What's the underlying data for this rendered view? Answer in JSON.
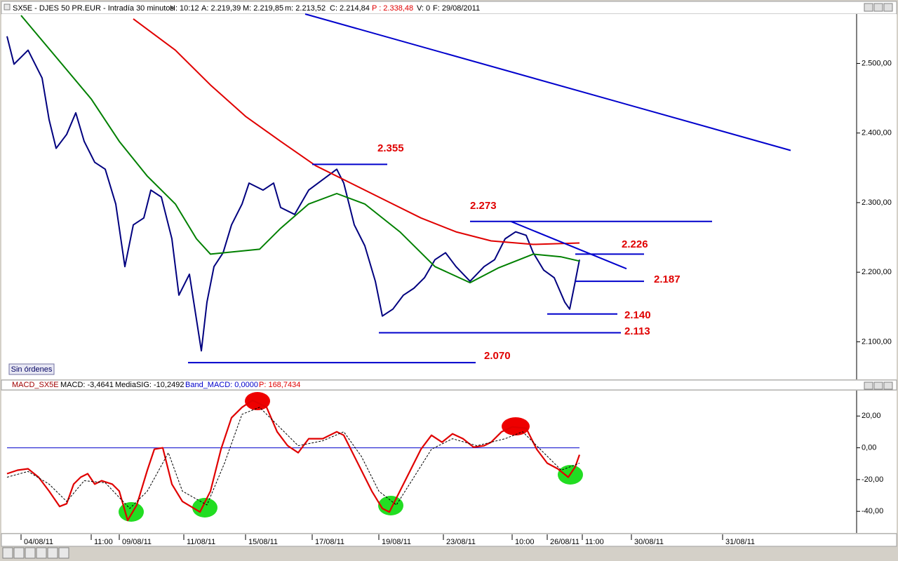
{
  "window": {
    "header": [
      "SX5E - DJES 50 PR.EUR - Intradía 30 minutos",
      "H: 10:12",
      "A: 2.219,39",
      "M: 2.219,85",
      "m: 2.213,52",
      "C: 2.214,84",
      "P : 2.338,48",
      "V: 0",
      "F: 29/08/2011"
    ],
    "button": "Sin órdenes",
    "macd_header": [
      "MACD_SX5E",
      "MACD: -3,4641",
      "MediaSIG: -10,2492",
      "Band_MACD: 0,0000",
      "P: 168,7434"
    ]
  },
  "chart_data": [
    {
      "type": "line",
      "xlim": [
        0,
        244
      ],
      "ylim": [
        2047,
        2571
      ],
      "yticks": [
        {
          "value": 2100,
          "label": "2.100,00"
        },
        {
          "value": 2200,
          "label": "2.200,00"
        },
        {
          "value": 2300,
          "label": "2.300,00"
        },
        {
          "value": 2400,
          "label": "2.400,00"
        },
        {
          "value": 2500,
          "label": "2.500,00"
        }
      ],
      "series": [
        {
          "color": "#00007f",
          "x": [
            2,
            4,
            8,
            12,
            14,
            16,
            19,
            21.6,
            24,
            27,
            30,
            33,
            35.6,
            38,
            41,
            43,
            46,
            49,
            51,
            54,
            57.4,
            59,
            61,
            63.6,
            66,
            69,
            71,
            75,
            78,
            80,
            84,
            88,
            92,
            96,
            98,
            101,
            104,
            107,
            109,
            112,
            115,
            118,
            121,
            124,
            127,
            130,
            134,
            138,
            141,
            144,
            147,
            150,
            152,
            155,
            158,
            161,
            162.4,
            164,
            165.2
          ],
          "values": [
            2539,
            2499,
            2519,
            2479,
            2419,
            2378,
            2398,
            2429,
            2388,
            2358,
            2348,
            2298,
            2208,
            2268,
            2278,
            2318,
            2308,
            2248,
            2167,
            2197,
            2087,
            2157,
            2208,
            2228,
            2268,
            2298,
            2328,
            2318,
            2328,
            2293,
            2283,
            2318,
            2333,
            2348,
            2328,
            2268,
            2238,
            2187,
            2137,
            2147,
            2167,
            2177,
            2192,
            2218,
            2228,
            2208,
            2187,
            2208,
            2218,
            2248,
            2258,
            2253,
            2228,
            2203,
            2192,
            2157,
            2147,
            2187,
            2218
          ]
        },
        {
          "color": "#e00000",
          "x": [
            38,
            50,
            60,
            70,
            80,
            90,
            100,
            110,
            120,
            130,
            140,
            152,
            165.2
          ],
          "values": [
            2564,
            2519,
            2469,
            2424,
            2388,
            2353,
            2328,
            2303,
            2278,
            2258,
            2245,
            2240,
            2242
          ]
        },
        {
          "color": "#008000",
          "x": [
            6,
            16,
            26,
            34,
            42,
            50,
            56,
            60,
            74,
            80,
            88,
            96,
            104,
            114,
            124,
            134,
            142,
            152,
            160,
            165.2
          ],
          "values": [
            2569,
            2509,
            2449,
            2388,
            2338,
            2298,
            2248,
            2226,
            2233,
            2263,
            2298,
            2313,
            2298,
            2258,
            2208,
            2185,
            2206,
            2226,
            2222,
            2216
          ]
        }
      ],
      "levels": {
        "values": [
          2355,
          2273,
          2226,
          2187,
          2140,
          2113,
          2070
        ],
        "value_labels": [
          "2.355",
          "2.273",
          "2.226",
          "2.187",
          "2.140",
          "2.113",
          "2.070"
        ],
        "x_start": [
          89,
          134,
          164,
          164,
          156,
          108,
          53.6
        ],
        "x_end": [
          110.4,
          203,
          183.6,
          183.6,
          176,
          177,
          135.6
        ],
        "color": "#0000cc",
        "label_color": "#e00000"
      },
      "trendlines": [
        {
          "x": [
            87,
            225.4
          ],
          "y": [
            2571,
            2375
          ]
        },
        {
          "x": [
            145.6,
            178.6
          ],
          "y": [
            2273,
            2205
          ]
        }
      ]
    },
    {
      "type": "line",
      "xlim": [
        0,
        244
      ],
      "ylim": [
        -53.6,
        36
      ],
      "yticks": [
        {
          "value": -40,
          "label": "-40,00"
        },
        {
          "value": -20,
          "label": "-20,00"
        },
        {
          "value": 0,
          "label": "0,00"
        },
        {
          "value": 20,
          "label": "20,00"
        }
      ],
      "hlines": [
        0
      ],
      "hline_color": "#0000cc",
      "series": [
        {
          "color": "#e00000",
          "x": [
            2,
            5,
            8,
            11,
            14,
            17,
            19,
            21,
            23,
            25,
            27,
            29,
            32,
            34,
            36.4,
            39,
            42,
            44,
            46.4,
            49,
            52,
            57,
            60,
            63,
            66,
            69,
            72,
            76,
            79,
            82,
            85,
            88,
            92,
            96,
            98,
            100,
            103,
            106,
            109,
            111,
            114,
            117,
            120,
            123,
            126,
            129,
            132,
            135,
            138,
            140,
            143,
            146,
            150,
            153,
            156,
            159,
            162,
            164,
            165.2
          ],
          "values": [
            -16.3,
            -14.1,
            -13.2,
            -18.5,
            -27.3,
            -36.9,
            -35.2,
            -22.9,
            -18.5,
            -16.3,
            -22.9,
            -20.7,
            -22.9,
            -27.3,
            -45.7,
            -36,
            -14.1,
            -0.9,
            0,
            -22.9,
            -33.8,
            -40.4,
            -27.3,
            -0.9,
            18.9,
            25.5,
            29.9,
            25.5,
            10.1,
            1.3,
            -3.1,
            5.7,
            5.7,
            10.1,
            7.9,
            -0.9,
            -14.1,
            -27.3,
            -38.2,
            -40.4,
            -27.3,
            -14.1,
            -0.9,
            7.9,
            3.5,
            8.8,
            5.7,
            0.4,
            1.3,
            3.5,
            10.1,
            13.2,
            12.3,
            -0.9,
            -9.7,
            -13.2,
            -18.5,
            -11.9,
            -4.4
          ]
        },
        {
          "color": "#000000",
          "dashed": true,
          "x": [
            2,
            8,
            14,
            19,
            24,
            30,
            37,
            42,
            48,
            52,
            59,
            64,
            69,
            74,
            79,
            85,
            92,
            98,
            103,
            108,
            113,
            118,
            123,
            129,
            136,
            144,
            149,
            154,
            160,
            165.2
          ],
          "values": [
            -18.5,
            -14.9,
            -22.9,
            -33.8,
            -20.7,
            -22,
            -38.2,
            -27.3,
            -3.1,
            -27.3,
            -36,
            -9.7,
            21.1,
            25.5,
            14.5,
            1.3,
            4.4,
            10.1,
            -5.3,
            -27.3,
            -36,
            -18.5,
            -0.9,
            5.7,
            1.3,
            5.7,
            10.1,
            -0.9,
            -14.1,
            -9.7
          ]
        }
      ],
      "xticks": [
        {
          "value": 6,
          "label": "04/08/11"
        },
        {
          "value": 26,
          "label": "11:00"
        },
        {
          "value": 34,
          "label": "09/08/11"
        },
        {
          "value": 52.4,
          "label": "11/08/11"
        },
        {
          "value": 70,
          "label": "15/08/11"
        },
        {
          "value": 89,
          "label": "17/08/11"
        },
        {
          "value": 108,
          "label": "19/08/11"
        },
        {
          "value": 126.4,
          "label": "23/08/11"
        },
        {
          "value": 146,
          "label": "10:00"
        },
        {
          "value": 156,
          "label": "26/08/11"
        },
        {
          "value": 166,
          "label": "11:00"
        },
        {
          "value": 180,
          "label": "30/08/11"
        },
        {
          "value": 206,
          "label": "31/08/11"
        }
      ]
    }
  ]
}
